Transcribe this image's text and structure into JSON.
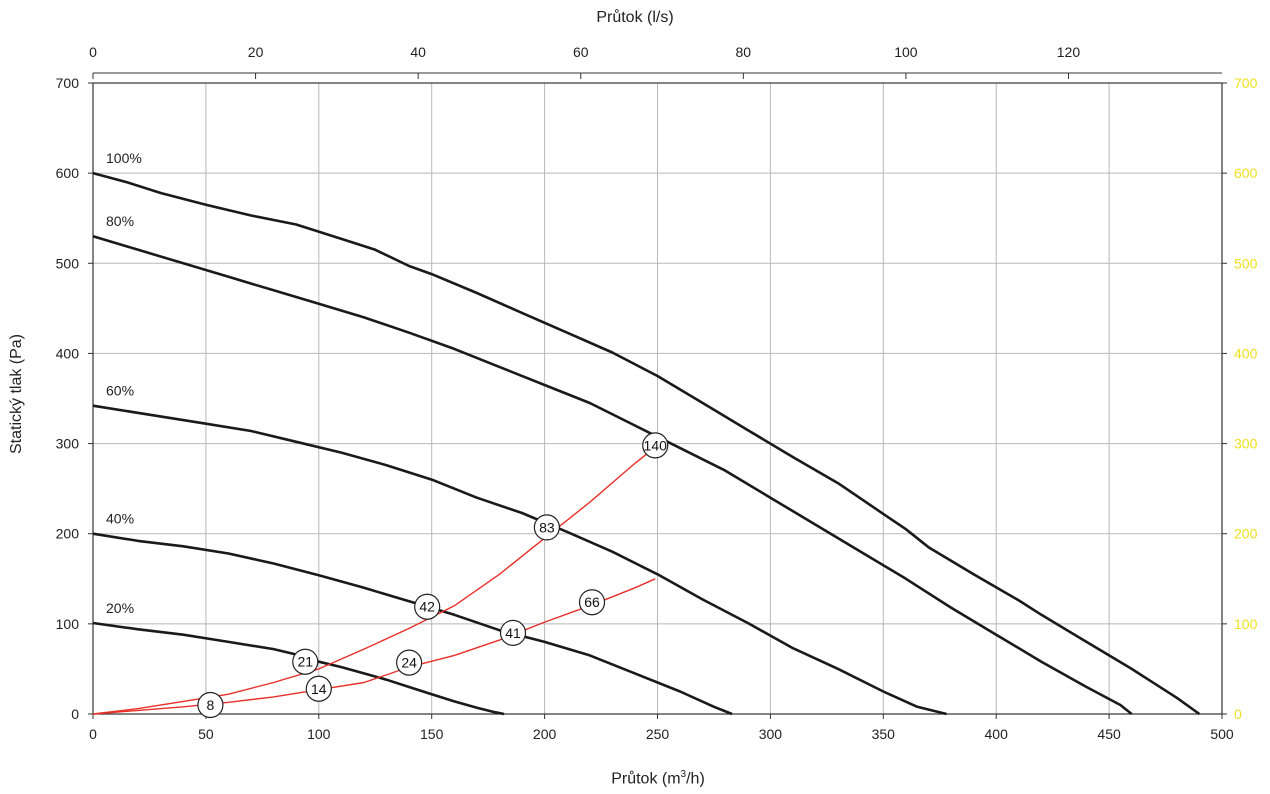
{
  "chart_data": {
    "type": "line",
    "x_top_label": "Průtok (l/s)",
    "x_bottom_label_main": "Průtok (m",
    "x_bottom_label_sup": "3",
    "x_bottom_label_tail": "/h)",
    "ylabel": "Statický tlak (Pa)",
    "xlim": [
      0,
      500
    ],
    "ylim": [
      0,
      700
    ],
    "x_ticks": [
      "0",
      "50",
      "100",
      "150",
      "200",
      "250",
      "300",
      "350",
      "400",
      "450",
      "500"
    ],
    "y_ticks": [
      "0",
      "100",
      "200",
      "300",
      "400",
      "500",
      "600",
      "700"
    ],
    "x_top_ticks": [
      "0",
      "20",
      "40",
      "60",
      "80",
      "100",
      "120"
    ],
    "y_right_ticks": [
      "0",
      "100",
      "200",
      "300",
      "400",
      "500",
      "600",
      "700"
    ],
    "grid": true,
    "colors": {
      "fan_curves": "#1a1a1a",
      "system_curves": "#e8302a",
      "right_axis": "#f0e020",
      "grid": "#b8b8b8"
    },
    "fan_curves": [
      {
        "name": "100%",
        "points": [
          [
            0,
            600
          ],
          [
            15,
            590
          ],
          [
            30,
            578
          ],
          [
            50,
            565
          ],
          [
            70,
            553
          ],
          [
            90,
            543
          ],
          [
            110,
            527
          ],
          [
            125,
            515
          ],
          [
            140,
            497
          ],
          [
            150,
            488
          ],
          [
            170,
            467
          ],
          [
            190,
            445
          ],
          [
            210,
            423
          ],
          [
            230,
            401
          ],
          [
            250,
            375
          ],
          [
            270,
            345
          ],
          [
            290,
            315
          ],
          [
            310,
            285
          ],
          [
            330,
            256
          ],
          [
            350,
            222
          ],
          [
            360,
            205
          ],
          [
            370,
            185
          ],
          [
            390,
            155
          ],
          [
            410,
            126
          ],
          [
            420,
            110
          ],
          [
            440,
            80
          ],
          [
            460,
            50
          ],
          [
            480,
            18
          ],
          [
            490,
            0
          ]
        ]
      },
      {
        "name": "80%",
        "points": [
          [
            0,
            530
          ],
          [
            20,
            515
          ],
          [
            40,
            500
          ],
          [
            60,
            485
          ],
          [
            80,
            470
          ],
          [
            100,
            455
          ],
          [
            120,
            440
          ],
          [
            140,
            423
          ],
          [
            160,
            405
          ],
          [
            180,
            385
          ],
          [
            200,
            365
          ],
          [
            220,
            345
          ],
          [
            240,
            320
          ],
          [
            260,
            295
          ],
          [
            280,
            270
          ],
          [
            300,
            240
          ],
          [
            320,
            210
          ],
          [
            340,
            180
          ],
          [
            360,
            150
          ],
          [
            380,
            118
          ],
          [
            400,
            88
          ],
          [
            420,
            58
          ],
          [
            440,
            30
          ],
          [
            455,
            10
          ],
          [
            460,
            0
          ]
        ]
      },
      {
        "name": "60%",
        "points": [
          [
            0,
            342
          ],
          [
            25,
            332
          ],
          [
            50,
            322
          ],
          [
            70,
            314
          ],
          [
            90,
            302
          ],
          [
            110,
            290
          ],
          [
            130,
            276
          ],
          [
            150,
            260
          ],
          [
            170,
            240
          ],
          [
            190,
            223
          ],
          [
            210,
            202
          ],
          [
            230,
            180
          ],
          [
            250,
            155
          ],
          [
            270,
            127
          ],
          [
            290,
            101
          ],
          [
            310,
            73
          ],
          [
            330,
            50
          ],
          [
            350,
            25
          ],
          [
            365,
            8
          ],
          [
            378,
            0
          ]
        ]
      },
      {
        "name": "40%",
        "points": [
          [
            0,
            200
          ],
          [
            20,
            192
          ],
          [
            40,
            186
          ],
          [
            60,
            178
          ],
          [
            80,
            167
          ],
          [
            100,
            154
          ],
          [
            120,
            140
          ],
          [
            140,
            125
          ],
          [
            160,
            110
          ],
          [
            180,
            93
          ],
          [
            200,
            80
          ],
          [
            220,
            65
          ],
          [
            240,
            45
          ],
          [
            260,
            25
          ],
          [
            275,
            8
          ],
          [
            283,
            0
          ]
        ]
      },
      {
        "name": "20%",
        "points": [
          [
            0,
            101
          ],
          [
            20,
            94
          ],
          [
            40,
            88
          ],
          [
            60,
            80
          ],
          [
            80,
            72
          ],
          [
            90,
            66
          ],
          [
            100,
            58
          ],
          [
            110,
            52
          ],
          [
            120,
            45
          ],
          [
            130,
            38
          ],
          [
            140,
            30
          ],
          [
            150,
            22
          ],
          [
            160,
            14
          ],
          [
            170,
            7
          ],
          [
            178,
            2
          ],
          [
            182,
            0
          ]
        ]
      }
    ],
    "system_curves": [
      {
        "points": [
          [
            0,
            0
          ],
          [
            20,
            6
          ],
          [
            40,
            14
          ],
          [
            60,
            22
          ],
          [
            80,
            35
          ],
          [
            100,
            50
          ],
          [
            120,
            72
          ],
          [
            140,
            95
          ],
          [
            160,
            120
          ],
          [
            180,
            155
          ],
          [
            200,
            195
          ],
          [
            220,
            235
          ],
          [
            240,
            278
          ],
          [
            250,
            298
          ]
        ]
      },
      {
        "points": [
          [
            0,
            0
          ],
          [
            20,
            4
          ],
          [
            40,
            8
          ],
          [
            60,
            13
          ],
          [
            80,
            19
          ],
          [
            100,
            27
          ],
          [
            120,
            35
          ],
          [
            140,
            52
          ],
          [
            160,
            65
          ],
          [
            180,
            82
          ],
          [
            200,
            102
          ],
          [
            220,
            120
          ],
          [
            240,
            140
          ],
          [
            249,
            150
          ]
        ]
      }
    ],
    "markers": [
      {
        "label": "140",
        "x": 249,
        "y": 298
      },
      {
        "label": "83",
        "x": 201,
        "y": 207
      },
      {
        "label": "42",
        "x": 148,
        "y": 119
      },
      {
        "label": "21",
        "x": 94,
        "y": 58
      },
      {
        "label": "8",
        "x": 52,
        "y": 10
      },
      {
        "label": "66",
        "x": 221,
        "y": 124
      },
      {
        "label": "41",
        "x": 186,
        "y": 90
      },
      {
        "label": "24",
        "x": 140,
        "y": 57
      },
      {
        "label": "14",
        "x": 100,
        "y": 28
      }
    ]
  }
}
